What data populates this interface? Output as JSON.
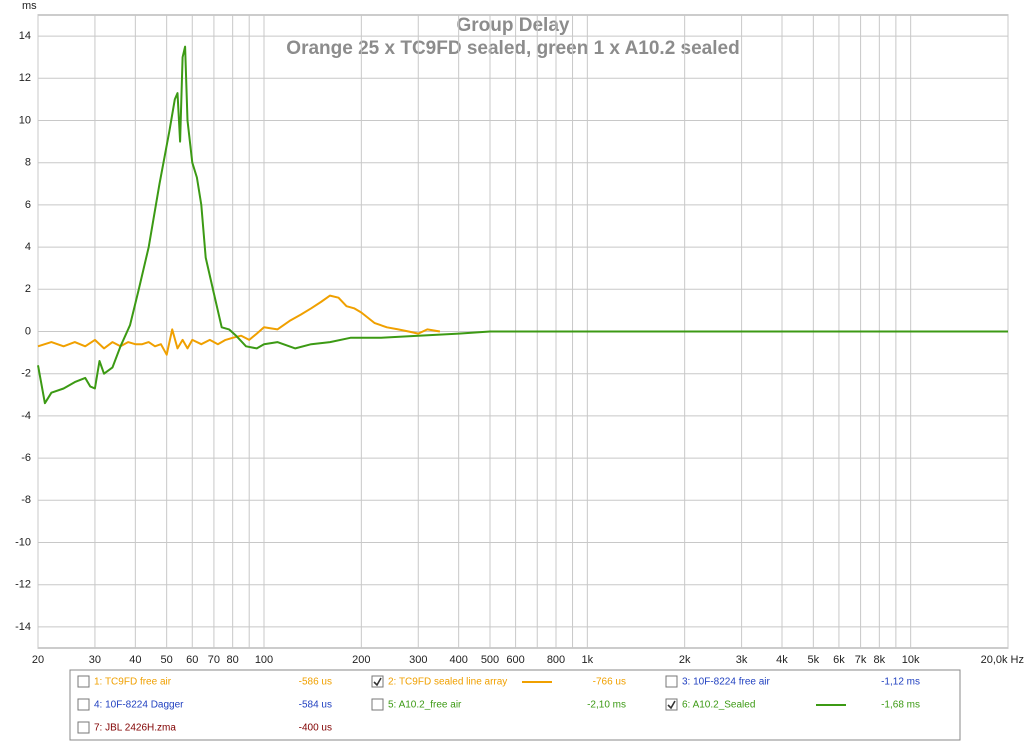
{
  "chart_data": {
    "type": "line",
    "title": "Group Delay",
    "subtitle": "Orange 25 x TC9FD sealed, green 1 x A10.2 sealed",
    "y_label": "ms",
    "log_x": true,
    "grid": true,
    "xlim": [
      20,
      20000
    ],
    "ylim": [
      -15,
      15
    ],
    "yticks": [
      -14,
      -12,
      -10,
      -8,
      -6,
      -4,
      -2,
      0,
      2,
      4,
      6,
      8,
      10,
      12,
      14
    ],
    "xticks": [
      20,
      30,
      40,
      50,
      60,
      70,
      80,
      {
        "value": 90,
        "label": null
      },
      100,
      200,
      300,
      400,
      500,
      600,
      {
        "value": 700,
        "label": null
      },
      800,
      {
        "value": 900,
        "label": null
      },
      {
        "value": 1000,
        "label": "1k"
      },
      {
        "value": 2000,
        "label": "2k"
      },
      {
        "value": 3000,
        "label": "3k"
      },
      {
        "value": 4000,
        "label": "4k"
      },
      {
        "value": 5000,
        "label": "5k"
      },
      {
        "value": 6000,
        "label": "6k"
      },
      {
        "value": 7000,
        "label": "7k"
      },
      {
        "value": 8000,
        "label": "8k"
      },
      {
        "value": 9000,
        "label": null
      },
      {
        "value": 10000,
        "label": "10k"
      },
      {
        "value": 20000,
        "label": "20,0k Hz"
      }
    ],
    "series": [
      {
        "color": "#f0a000",
        "x": [
          20,
          22,
          24,
          26,
          28,
          30,
          32,
          34,
          36,
          38,
          40,
          42,
          44,
          46,
          48,
          50,
          52,
          54,
          56,
          58,
          60,
          64,
          68,
          72,
          76,
          80,
          85,
          90,
          95,
          100,
          110,
          120,
          130,
          140,
          150,
          160,
          170,
          180,
          190,
          200,
          220,
          240,
          260,
          280,
          300,
          320,
          350
        ],
        "values": [
          -0.7,
          -0.5,
          -0.7,
          -0.5,
          -0.7,
          -0.4,
          -0.8,
          -0.5,
          -0.7,
          -0.5,
          -0.6,
          -0.6,
          -0.5,
          -0.7,
          -0.6,
          -1.1,
          0.1,
          -0.8,
          -0.4,
          -0.8,
          -0.4,
          -0.6,
          -0.4,
          -0.6,
          -0.4,
          -0.3,
          -0.2,
          -0.4,
          -0.1,
          0.2,
          0.1,
          0.5,
          0.8,
          1.1,
          1.4,
          1.7,
          1.6,
          1.2,
          1.1,
          0.9,
          0.4,
          0.2,
          0.1,
          0.0,
          -0.1,
          0.1,
          0.0
        ]
      },
      {
        "color": "#3c9a14",
        "x": [
          20,
          21,
          22,
          24,
          26,
          28,
          29,
          30,
          31,
          32,
          34,
          36,
          38.5,
          41,
          44,
          47.5,
          51,
          53,
          54,
          55,
          56,
          57,
          58,
          60,
          62,
          64,
          66,
          70,
          74,
          78,
          82,
          88,
          95,
          100,
          110,
          125,
          140,
          160,
          185,
          230,
          300,
          400,
          500,
          750,
          2000,
          20000
        ],
        "values": [
          -1.6,
          -3.4,
          -2.9,
          -2.7,
          -2.4,
          -2.2,
          -2.6,
          -2.7,
          -1.4,
          -2.0,
          -1.7,
          -0.7,
          0.3,
          2.0,
          4.0,
          7.0,
          9.5,
          11.0,
          11.3,
          9.0,
          13.0,
          13.5,
          10.0,
          8.0,
          7.3,
          6.0,
          3.5,
          1.8,
          0.2,
          0.1,
          -0.2,
          -0.7,
          -0.8,
          -0.6,
          -0.5,
          -0.8,
          -0.6,
          -0.5,
          -0.3,
          -0.3,
          -0.2,
          -0.1,
          0.0,
          0.0,
          0.0,
          0.0
        ]
      }
    ],
    "legend": [
      {
        "name": "1: TC9FD free air",
        "delay": "-586 us",
        "color": "#f0a000",
        "checked": false
      },
      {
        "name": "2: TC9FD sealed line array",
        "delay": "-766 us",
        "color": "#f0a000",
        "checked": true
      },
      {
        "name": "3: 10F-8224 free air",
        "delay": "-1,12 ms",
        "color": "#2040c0",
        "checked": false
      },
      {
        "name": "4: 10F-8224 Dagger",
        "delay": "-584 us",
        "color": "#2040c0",
        "checked": false
      },
      {
        "name": "5: A10.2_free air",
        "delay": "-2,10 ms",
        "color": "#3c9a14",
        "checked": false
      },
      {
        "name": "6: A10.2_Sealed",
        "delay": "-1,68 ms",
        "color": "#3c9a14",
        "checked": true
      },
      {
        "name": "7: JBL 2426H.zma",
        "delay": "-400 us",
        "color": "#800000",
        "checked": false
      }
    ]
  }
}
